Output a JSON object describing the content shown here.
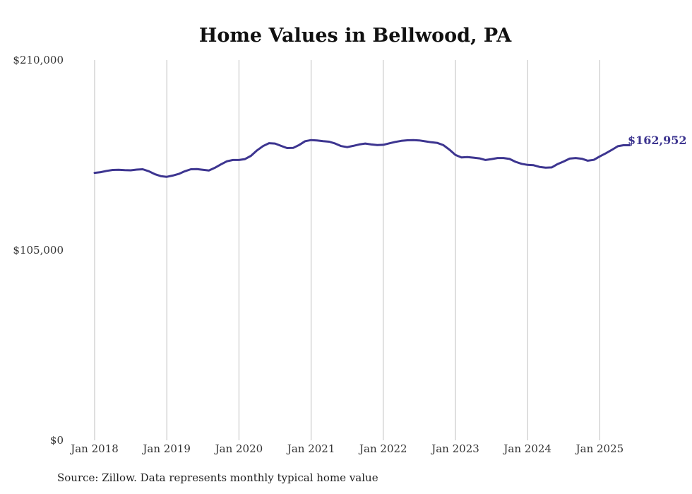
{
  "source_note": "Source: Zillow. Data represents monthly typical home value",
  "colors": {
    "line": "#3d3590",
    "grid": "#bfbfbf",
    "text": "#333333"
  },
  "chart_data": {
    "type": "line",
    "title": "Home Values in Bellwood, PA",
    "xlabel": "",
    "ylabel": "",
    "ylim": [
      0,
      210000
    ],
    "y_ticks": [
      {
        "value": 0,
        "label": "$0"
      },
      {
        "value": 105000,
        "label": "$105,000"
      },
      {
        "value": 210000,
        "label": "$210,000"
      }
    ],
    "x_ticks": [
      "Jan 2018",
      "Jan 2019",
      "Jan 2020",
      "Jan 2021",
      "Jan 2022",
      "Jan 2023",
      "Jan 2024",
      "Jan 2025"
    ],
    "grid": "vertical",
    "end_label": "$162,952",
    "series": [
      {
        "values": [
          147700,
          148100,
          148800,
          149300,
          149400,
          149200,
          149100,
          149500,
          149700,
          148600,
          147000,
          145900,
          145500,
          146200,
          147100,
          148600,
          149700,
          149800,
          149400,
          149000,
          150500,
          152400,
          154100,
          154800,
          154800,
          155300,
          157100,
          160100,
          162500,
          164100,
          163900,
          162600,
          161400,
          161500,
          163100,
          165200,
          165800,
          165600,
          165200,
          164900,
          163900,
          162500,
          161900,
          162600,
          163400,
          163900,
          163400,
          163100,
          163200,
          164000,
          164800,
          165400,
          165700,
          165800,
          165600,
          165100,
          164600,
          164200,
          163000,
          160500,
          157600,
          156200,
          156400,
          156100,
          155700,
          154800,
          155300,
          155900,
          155900,
          155400,
          153800,
          152700,
          152100,
          151900,
          151000,
          150600,
          150700,
          152600,
          154000,
          155600,
          155900,
          155500,
          154400,
          154900,
          156800,
          158500,
          160400,
          162400,
          163000,
          162952
        ]
      }
    ]
  }
}
